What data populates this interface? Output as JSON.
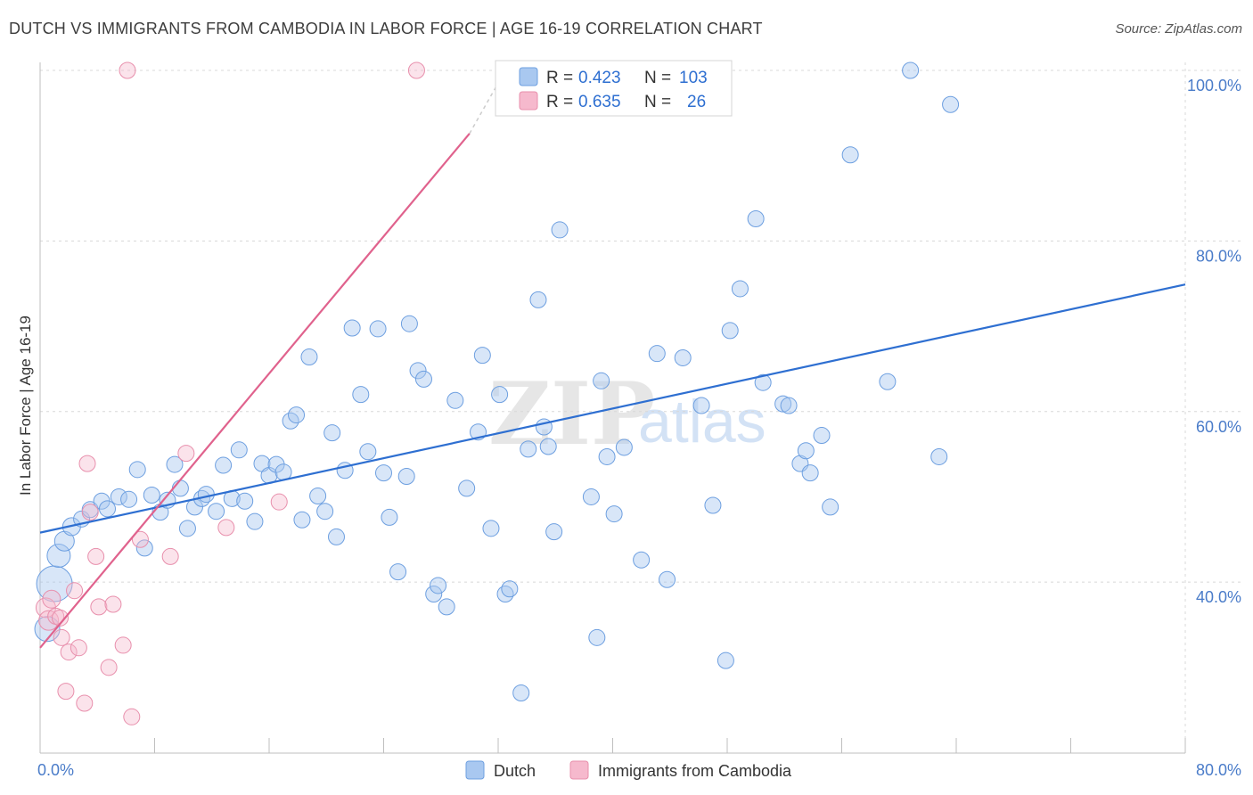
{
  "header": {
    "title": "DUTCH VS IMMIGRANTS FROM CAMBODIA IN LABOR FORCE | AGE 16-19 CORRELATION CHART",
    "source": "Source: ZipAtlas.com"
  },
  "watermark": {
    "zip": "ZIP",
    "atlas": "atlas"
  },
  "legend_box": {
    "rows": [
      {
        "r_label": "R = ",
        "r_value": "0.423",
        "n_label": "N = ",
        "n_value": "103"
      },
      {
        "r_label": "R = ",
        "r_value": "0.635",
        "n_label": "N = ",
        "n_value": "26"
      }
    ]
  },
  "colors": {
    "dutch_fill": "#a9c8f0",
    "dutch_stroke": "#6d9fe0",
    "dutch_line": "#2e6fd1",
    "cambodia_fill": "#f6b9cd",
    "cambodia_stroke": "#e88fac",
    "cambodia_line": "#e0628d",
    "grid": "#d8d8d8",
    "tick_text": "#4a7cc9"
  },
  "chart_data": {
    "type": "scatter",
    "title": "DUTCH VS IMMIGRANTS FROM CAMBODIA IN LABOR FORCE | AGE 16-19 CORRELATION CHART",
    "xlabel": "",
    "ylabel": "In Labor Force | Age 16-19",
    "xlim": [
      0,
      80
    ],
    "ylim": [
      20,
      101
    ],
    "x_tick_labels": [
      {
        "value": 0,
        "label": "0.0%"
      },
      {
        "value": 80,
        "label": "80.0%"
      }
    ],
    "y_tick_labels": [
      {
        "value": 40,
        "label": "40.0%"
      },
      {
        "value": 60,
        "label": "60.0%"
      },
      {
        "value": 80,
        "label": "80.0%"
      },
      {
        "value": 100,
        "label": "100.0%"
      }
    ],
    "grid": true,
    "legend_position": "top-center",
    "series": [
      {
        "name": "Dutch",
        "R": 0.423,
        "N": 103,
        "trend": {
          "x": [
            0,
            80
          ],
          "y": [
            45.8,
            74.9
          ]
        },
        "points": [
          [
            1.0,
            39.8,
            20
          ],
          [
            0.5,
            34.5,
            14
          ],
          [
            1.3,
            43.1,
            13
          ],
          [
            1.7,
            44.8,
            11
          ],
          [
            2.2,
            46.5,
            10
          ],
          [
            2.9,
            47.4,
            9
          ],
          [
            3.5,
            48.5,
            9
          ],
          [
            4.3,
            49.5,
            9
          ],
          [
            4.7,
            48.6,
            9
          ],
          [
            5.5,
            50.0,
            9
          ],
          [
            6.2,
            49.7,
            9
          ],
          [
            6.8,
            53.2,
            9
          ],
          [
            7.3,
            44.0,
            9
          ],
          [
            7.8,
            50.2,
            9
          ],
          [
            8.4,
            48.2,
            9
          ],
          [
            8.9,
            49.6,
            9
          ],
          [
            9.4,
            53.8,
            9
          ],
          [
            9.8,
            51.0,
            9
          ],
          [
            10.3,
            46.3,
            9
          ],
          [
            10.8,
            48.8,
            9
          ],
          [
            11.3,
            49.8,
            9
          ],
          [
            11.6,
            50.3,
            9
          ],
          [
            12.3,
            48.3,
            9
          ],
          [
            12.8,
            53.7,
            9
          ],
          [
            13.4,
            49.8,
            9
          ],
          [
            13.9,
            55.5,
            9
          ],
          [
            14.3,
            49.5,
            9
          ],
          [
            15.0,
            47.1,
            9
          ],
          [
            15.5,
            53.9,
            9
          ],
          [
            16.0,
            52.5,
            9
          ],
          [
            16.5,
            53.8,
            9
          ],
          [
            17.0,
            52.9,
            9
          ],
          [
            17.5,
            58.9,
            9
          ],
          [
            17.9,
            59.6,
            9
          ],
          [
            18.3,
            47.3,
            9
          ],
          [
            18.8,
            66.4,
            9
          ],
          [
            19.4,
            50.1,
            9
          ],
          [
            19.9,
            48.3,
            9
          ],
          [
            20.4,
            57.5,
            9
          ],
          [
            20.7,
            45.3,
            9
          ],
          [
            21.3,
            53.1,
            9
          ],
          [
            21.8,
            69.8,
            9
          ],
          [
            22.4,
            62.0,
            9
          ],
          [
            22.9,
            55.3,
            9
          ],
          [
            23.6,
            69.7,
            9
          ],
          [
            24.0,
            52.8,
            9
          ],
          [
            24.4,
            47.6,
            9
          ],
          [
            25.0,
            41.2,
            9
          ],
          [
            25.8,
            70.3,
            9
          ],
          [
            25.6,
            52.4,
            9
          ],
          [
            26.4,
            64.8,
            9
          ],
          [
            26.8,
            63.8,
            9
          ],
          [
            27.5,
            38.6,
            9
          ],
          [
            27.8,
            39.6,
            9
          ],
          [
            28.4,
            37.1,
            9
          ],
          [
            29.0,
            61.3,
            9
          ],
          [
            29.8,
            51.0,
            9
          ],
          [
            30.6,
            57.6,
            9
          ],
          [
            30.9,
            66.6,
            9
          ],
          [
            31.5,
            46.3,
            9
          ],
          [
            32.1,
            62.0,
            9
          ],
          [
            32.5,
            38.6,
            9
          ],
          [
            32.8,
            39.2,
            9
          ],
          [
            33.6,
            27.0,
            9
          ],
          [
            34.1,
            55.6,
            9
          ],
          [
            34.8,
            73.1,
            9
          ],
          [
            35.2,
            58.2,
            9
          ],
          [
            35.5,
            55.9,
            9
          ],
          [
            35.9,
            45.9,
            9
          ],
          [
            36.3,
            81.3,
            9
          ],
          [
            36.9,
            100.0,
            9
          ],
          [
            37.3,
            100.0,
            9
          ],
          [
            38.5,
            50.0,
            9
          ],
          [
            38.9,
            33.5,
            9
          ],
          [
            39.2,
            63.6,
            9
          ],
          [
            39.6,
            54.7,
            9
          ],
          [
            40.1,
            48.0,
            9
          ],
          [
            40.8,
            55.8,
            9
          ],
          [
            42.0,
            42.6,
            9
          ],
          [
            43.1,
            66.8,
            9
          ],
          [
            43.8,
            40.3,
            9
          ],
          [
            44.9,
            66.3,
            9
          ],
          [
            46.2,
            60.7,
            9
          ],
          [
            47.0,
            49.0,
            9
          ],
          [
            47.9,
            30.8,
            9
          ],
          [
            48.2,
            69.5,
            9
          ],
          [
            48.9,
            74.4,
            9
          ],
          [
            50.0,
            82.6,
            9
          ],
          [
            50.5,
            63.4,
            9
          ],
          [
            51.9,
            60.9,
            9
          ],
          [
            52.3,
            60.7,
            9
          ],
          [
            53.1,
            53.9,
            9
          ],
          [
            53.5,
            55.4,
            9
          ],
          [
            53.8,
            52.8,
            9
          ],
          [
            54.6,
            57.2,
            9
          ],
          [
            55.2,
            48.8,
            9
          ],
          [
            56.6,
            90.1,
            9
          ],
          [
            59.2,
            63.5,
            9
          ],
          [
            60.8,
            100.0,
            9
          ],
          [
            62.8,
            54.7,
            9
          ],
          [
            63.6,
            96.0,
            9
          ],
          [
            55.5,
            48.5,
            0
          ],
          [
            44.3,
            50.3,
            0
          ]
        ]
      },
      {
        "name": "Immigrants from Cambodia",
        "R": 0.635,
        "N": 26,
        "trend": {
          "x": [
            0,
            30.0
          ],
          "y": [
            32.3,
            92.6
          ]
        },
        "trend_dashed_to": {
          "x": 32.5,
          "y": 100
        },
        "points": [
          [
            0.4,
            37.0,
            11
          ],
          [
            0.6,
            35.5,
            11
          ],
          [
            0.8,
            38.0,
            10
          ],
          [
            1.1,
            36.0,
            9
          ],
          [
            1.4,
            35.8,
            9
          ],
          [
            1.5,
            33.5,
            9
          ],
          [
            1.8,
            27.2,
            9
          ],
          [
            2.0,
            31.8,
            9
          ],
          [
            2.4,
            39.0,
            9
          ],
          [
            2.7,
            32.3,
            9
          ],
          [
            3.1,
            25.8,
            9
          ],
          [
            3.3,
            53.9,
            9
          ],
          [
            3.5,
            48.2,
            9
          ],
          [
            3.9,
            43.0,
            9
          ],
          [
            4.1,
            37.1,
            9
          ],
          [
            4.8,
            30.0,
            9
          ],
          [
            5.1,
            37.4,
            9
          ],
          [
            5.8,
            32.6,
            9
          ],
          [
            6.4,
            24.2,
            9
          ],
          [
            6.1,
            100.0,
            9
          ],
          [
            7.0,
            45.0,
            9
          ],
          [
            9.1,
            43.0,
            9
          ],
          [
            10.2,
            55.1,
            9
          ],
          [
            13.0,
            46.4,
            9
          ],
          [
            16.7,
            49.4,
            9
          ],
          [
            26.3,
            100.0,
            9
          ]
        ]
      }
    ]
  }
}
